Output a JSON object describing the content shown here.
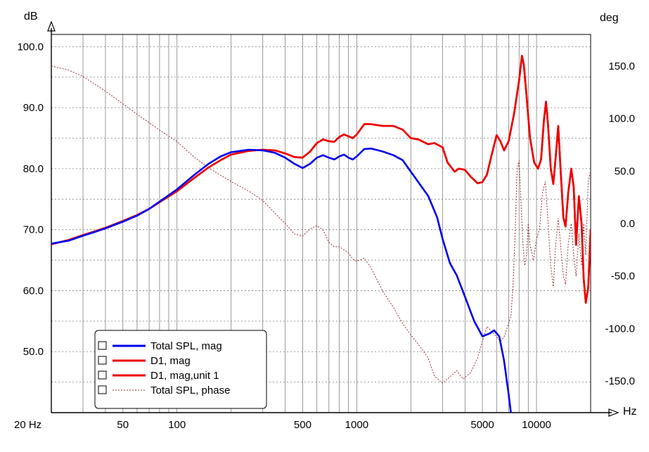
{
  "chart_data": {
    "type": "line",
    "x_scale": "log",
    "xlim": [
      20,
      20000
    ],
    "ylim": [
      40,
      102
    ],
    "y2lim": [
      -180,
      180
    ],
    "left_unit": "dB",
    "right_unit": "deg",
    "x_unit": "Hz",
    "x_tick_labels": [
      {
        "v": 20,
        "t": "20 Hz"
      },
      {
        "v": 50,
        "t": "50"
      },
      {
        "v": 100,
        "t": "100"
      },
      {
        "v": 500,
        "t": "500"
      },
      {
        "v": 1000,
        "t": "1000"
      },
      {
        "v": 5000,
        "t": "5000"
      },
      {
        "v": 10000,
        "t": "10000"
      }
    ],
    "y_tick_labels": [
      {
        "v": 100,
        "t": "100.0"
      },
      {
        "v": 90,
        "t": "90.0"
      },
      {
        "v": 80,
        "t": "80.0"
      },
      {
        "v": 70,
        "t": "70.0"
      },
      {
        "v": 60,
        "t": "60.0"
      },
      {
        "v": 50,
        "t": "50.0"
      }
    ],
    "y2_tick_labels": [
      {
        "v": 150,
        "t": "150.0"
      },
      {
        "v": 100,
        "t": "100.0"
      },
      {
        "v": 50,
        "t": "50.0"
      },
      {
        "v": 0,
        "t": "0.0"
      },
      {
        "v": -50,
        "t": "-50.0"
      },
      {
        "v": -100,
        "t": "-100.0"
      },
      {
        "v": -150,
        "t": "-150.0"
      }
    ],
    "grid": true,
    "legend_position": "bottom-left",
    "series": [
      {
        "name": "Total SPL, mag",
        "color": "#0000ee",
        "style": "solid",
        "axis": "left",
        "points": [
          [
            20,
            67.7
          ],
          [
            25,
            68.2
          ],
          [
            30,
            69.0
          ],
          [
            40,
            70.2
          ],
          [
            50,
            71.3
          ],
          [
            60,
            72.3
          ],
          [
            70,
            73.4
          ],
          [
            80,
            74.6
          ],
          [
            100,
            76.6
          ],
          [
            125,
            79.0
          ],
          [
            150,
            80.8
          ],
          [
            175,
            82.0
          ],
          [
            200,
            82.7
          ],
          [
            250,
            83.1
          ],
          [
            300,
            83.0
          ],
          [
            350,
            82.6
          ],
          [
            400,
            81.8
          ],
          [
            450,
            80.8
          ],
          [
            500,
            80.1
          ],
          [
            550,
            80.8
          ],
          [
            600,
            81.8
          ],
          [
            650,
            82.2
          ],
          [
            700,
            81.8
          ],
          [
            750,
            81.5
          ],
          [
            800,
            82.0
          ],
          [
            850,
            82.3
          ],
          [
            900,
            81.8
          ],
          [
            950,
            81.5
          ],
          [
            1000,
            82.0
          ],
          [
            1100,
            83.2
          ],
          [
            1200,
            83.3
          ],
          [
            1400,
            82.8
          ],
          [
            1600,
            82.2
          ],
          [
            1800,
            81.4
          ],
          [
            2000,
            79.5
          ],
          [
            2200,
            77.8
          ],
          [
            2500,
            75.5
          ],
          [
            2800,
            72.0
          ],
          [
            3000,
            68.5
          ],
          [
            3300,
            64.5
          ],
          [
            3600,
            62.5
          ],
          [
            4000,
            59.0
          ],
          [
            4500,
            55.0
          ],
          [
            5000,
            52.5
          ],
          [
            5500,
            53.0
          ],
          [
            5800,
            53.5
          ],
          [
            6200,
            52.5
          ],
          [
            6600,
            48.5
          ],
          [
            7000,
            43.0
          ],
          [
            7200,
            40.0
          ]
        ]
      },
      {
        "name": "D1, mag",
        "color": "#ee0000",
        "style": "solid",
        "axis": "left",
        "points": [
          [
            20,
            67.6
          ],
          [
            25,
            68.3
          ],
          [
            30,
            69.1
          ],
          [
            40,
            70.3
          ],
          [
            50,
            71.4
          ],
          [
            60,
            72.4
          ],
          [
            70,
            73.4
          ],
          [
            80,
            74.5
          ],
          [
            100,
            76.3
          ],
          [
            125,
            78.5
          ],
          [
            150,
            80.2
          ],
          [
            175,
            81.4
          ],
          [
            200,
            82.3
          ],
          [
            250,
            82.9
          ],
          [
            300,
            83.1
          ],
          [
            350,
            83.0
          ],
          [
            400,
            82.5
          ],
          [
            450,
            81.9
          ],
          [
            500,
            81.8
          ],
          [
            550,
            82.8
          ],
          [
            600,
            84.2
          ],
          [
            650,
            84.8
          ],
          [
            700,
            84.5
          ],
          [
            750,
            84.4
          ],
          [
            800,
            85.2
          ],
          [
            850,
            85.6
          ],
          [
            900,
            85.3
          ],
          [
            950,
            85.0
          ],
          [
            1000,
            85.6
          ],
          [
            1100,
            87.3
          ],
          [
            1200,
            87.3
          ],
          [
            1400,
            87.0
          ],
          [
            1600,
            87.0
          ],
          [
            1800,
            86.4
          ],
          [
            2000,
            85.0
          ],
          [
            2200,
            84.8
          ],
          [
            2500,
            84.0
          ],
          [
            2700,
            84.2
          ],
          [
            3000,
            83.5
          ],
          [
            3200,
            81.0
          ],
          [
            3500,
            79.5
          ],
          [
            3700,
            80.0
          ],
          [
            4000,
            79.8
          ],
          [
            4300,
            78.7
          ],
          [
            4700,
            77.6
          ],
          [
            5000,
            77.8
          ],
          [
            5300,
            79.0
          ],
          [
            5600,
            82.0
          ],
          [
            6000,
            85.5
          ],
          [
            6300,
            84.5
          ],
          [
            6600,
            83.0
          ],
          [
            7000,
            84.5
          ],
          [
            7500,
            89.0
          ],
          [
            8000,
            94.5
          ],
          [
            8300,
            98.5
          ],
          [
            8500,
            97.0
          ],
          [
            8800,
            92.0
          ],
          [
            9200,
            85.0
          ],
          [
            9700,
            81.0
          ],
          [
            10200,
            80.0
          ],
          [
            10600,
            81.5
          ],
          [
            11000,
            88.0
          ],
          [
            11300,
            91.0
          ],
          [
            11600,
            87.0
          ],
          [
            12000,
            80.0
          ],
          [
            12400,
            77.5
          ],
          [
            12800,
            82.0
          ],
          [
            13200,
            87.0
          ],
          [
            13600,
            80.0
          ],
          [
            14100,
            72.0
          ],
          [
            14500,
            70.5
          ],
          [
            15000,
            76.0
          ],
          [
            15600,
            80.0
          ],
          [
            16100,
            77.0
          ],
          [
            16600,
            67.5
          ],
          [
            17200,
            75.5
          ],
          [
            17800,
            71.0
          ],
          [
            18300,
            62.0
          ],
          [
            18800,
            58.0
          ],
          [
            19400,
            60.5
          ],
          [
            20000,
            70.0
          ]
        ]
      },
      {
        "name": "D1, mag,unit 1",
        "color": "#ee0000",
        "style": "solid",
        "axis": "left",
        "points": [
          [
            20,
            67.6
          ],
          [
            25,
            68.3
          ],
          [
            30,
            69.1
          ],
          [
            40,
            70.3
          ],
          [
            50,
            71.4
          ],
          [
            60,
            72.4
          ],
          [
            70,
            73.4
          ],
          [
            80,
            74.5
          ],
          [
            100,
            76.3
          ],
          [
            125,
            78.5
          ],
          [
            150,
            80.2
          ],
          [
            175,
            81.4
          ],
          [
            200,
            82.3
          ],
          [
            250,
            82.9
          ],
          [
            300,
            83.1
          ],
          [
            350,
            83.0
          ],
          [
            400,
            82.5
          ],
          [
            450,
            81.9
          ],
          [
            500,
            81.8
          ],
          [
            550,
            82.8
          ],
          [
            600,
            84.2
          ],
          [
            650,
            84.8
          ],
          [
            700,
            84.5
          ],
          [
            750,
            84.4
          ],
          [
            800,
            85.2
          ],
          [
            850,
            85.6
          ],
          [
            900,
            85.3
          ],
          [
            950,
            85.0
          ],
          [
            1000,
            85.6
          ],
          [
            1100,
            87.3
          ],
          [
            1200,
            87.3
          ],
          [
            1400,
            87.0
          ],
          [
            1600,
            87.0
          ],
          [
            1800,
            86.4
          ],
          [
            2000,
            85.0
          ],
          [
            2200,
            84.8
          ],
          [
            2500,
            84.0
          ],
          [
            2700,
            84.2
          ],
          [
            3000,
            83.5
          ],
          [
            3200,
            81.0
          ],
          [
            3500,
            79.5
          ],
          [
            3700,
            80.0
          ],
          [
            4000,
            79.8
          ],
          [
            4300,
            78.7
          ],
          [
            4700,
            77.6
          ],
          [
            5000,
            77.8
          ],
          [
            5300,
            79.0
          ],
          [
            5600,
            82.0
          ],
          [
            6000,
            85.5
          ],
          [
            6300,
            84.5
          ],
          [
            6600,
            83.0
          ],
          [
            7000,
            84.5
          ],
          [
            7500,
            89.0
          ],
          [
            8000,
            94.5
          ],
          [
            8300,
            98.5
          ],
          [
            8500,
            97.0
          ],
          [
            8800,
            92.0
          ],
          [
            9200,
            85.0
          ],
          [
            9700,
            81.0
          ],
          [
            10200,
            80.0
          ],
          [
            10600,
            81.5
          ],
          [
            11000,
            88.0
          ],
          [
            11300,
            91.0
          ],
          [
            11600,
            87.0
          ],
          [
            12000,
            80.0
          ],
          [
            12400,
            77.5
          ],
          [
            12800,
            82.0
          ],
          [
            13200,
            87.0
          ],
          [
            13600,
            80.0
          ],
          [
            14100,
            72.0
          ],
          [
            14500,
            70.5
          ],
          [
            15000,
            76.0
          ],
          [
            15600,
            80.0
          ],
          [
            16100,
            77.0
          ],
          [
            16600,
            67.5
          ],
          [
            17200,
            75.5
          ],
          [
            17800,
            71.0
          ],
          [
            18300,
            62.0
          ],
          [
            18800,
            58.0
          ],
          [
            19400,
            60.5
          ],
          [
            20000,
            70.0
          ]
        ]
      },
      {
        "name": "Total SPL, phase",
        "color": "#993333",
        "style": "dotted",
        "axis": "right",
        "points": [
          [
            20,
            150
          ],
          [
            25,
            146
          ],
          [
            30,
            140
          ],
          [
            40,
            126
          ],
          [
            50,
            114
          ],
          [
            60,
            104
          ],
          [
            70,
            96
          ],
          [
            80,
            89
          ],
          [
            100,
            78
          ],
          [
            125,
            63
          ],
          [
            150,
            53
          ],
          [
            175,
            46
          ],
          [
            200,
            40
          ],
          [
            250,
            31
          ],
          [
            300,
            22
          ],
          [
            350,
            10
          ],
          [
            400,
            0
          ],
          [
            450,
            -10
          ],
          [
            500,
            -12
          ],
          [
            550,
            -5
          ],
          [
            600,
            -2
          ],
          [
            650,
            -6
          ],
          [
            700,
            -18
          ],
          [
            750,
            -22
          ],
          [
            800,
            -22
          ],
          [
            850,
            -25
          ],
          [
            900,
            -28
          ],
          [
            950,
            -34
          ],
          [
            1000,
            -36
          ],
          [
            1100,
            -33
          ],
          [
            1200,
            -42
          ],
          [
            1400,
            -65
          ],
          [
            1600,
            -80
          ],
          [
            1800,
            -95
          ],
          [
            2000,
            -106
          ],
          [
            2200,
            -115
          ],
          [
            2500,
            -128
          ],
          [
            2700,
            -145
          ],
          [
            3000,
            -152
          ],
          [
            3300,
            -146
          ],
          [
            3600,
            -140
          ],
          [
            3900,
            -148
          ],
          [
            4300,
            -142
          ],
          [
            4700,
            -128
          ],
          [
            5000,
            -112
          ],
          [
            5300,
            -98
          ],
          [
            5600,
            -102
          ],
          [
            6000,
            -108
          ],
          [
            6300,
            -112
          ],
          [
            6600,
            -108
          ],
          [
            7000,
            -95
          ],
          [
            7200,
            -88
          ],
          [
            7400,
            -60
          ],
          [
            7600,
            -10
          ],
          [
            7800,
            50
          ],
          [
            8000,
            60
          ],
          [
            8200,
            20
          ],
          [
            8400,
            -20
          ],
          [
            8600,
            -40
          ],
          [
            8800,
            -30
          ],
          [
            9000,
            0
          ],
          [
            9200,
            -20
          ],
          [
            9600,
            -35
          ],
          [
            10000,
            -15
          ],
          [
            10400,
            -5
          ],
          [
            10800,
            30
          ],
          [
            11200,
            40
          ],
          [
            11600,
            0
          ],
          [
            12000,
            -40
          ],
          [
            12400,
            -60
          ],
          [
            12800,
            -20
          ],
          [
            13200,
            5
          ],
          [
            13600,
            -20
          ],
          [
            14100,
            -50
          ],
          [
            14500,
            -58
          ],
          [
            15000,
            -20
          ],
          [
            15600,
            0
          ],
          [
            16100,
            -30
          ],
          [
            16600,
            -50
          ],
          [
            17200,
            -10
          ],
          [
            17800,
            -40
          ],
          [
            18300,
            0
          ],
          [
            18800,
            -30
          ],
          [
            19400,
            40
          ],
          [
            20000,
            50
          ]
        ]
      }
    ]
  }
}
